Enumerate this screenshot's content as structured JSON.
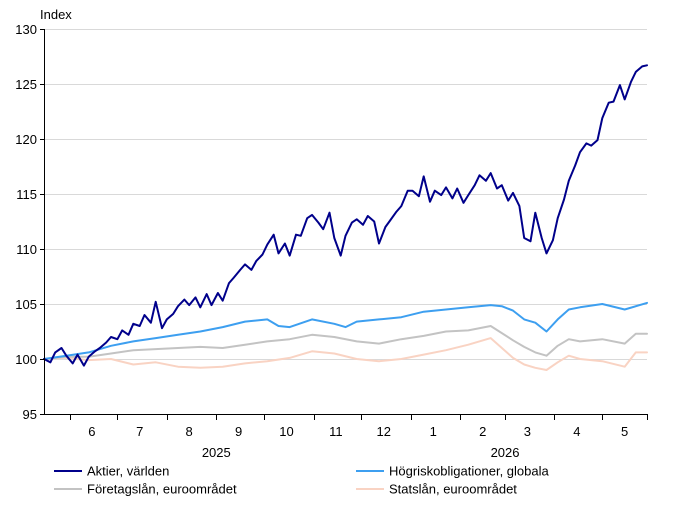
{
  "chart_data": {
    "type": "line",
    "title": "",
    "ylabel": "Index",
    "xlabel": "",
    "ylim": [
      95,
      130
    ],
    "yticks": [
      95,
      100,
      105,
      110,
      115,
      120,
      125,
      130
    ],
    "grid": true,
    "legend_position": "bottom",
    "x_start": "2025-05-16",
    "x_end": "2026-05-29",
    "month_ticks": [
      {
        "label": "6",
        "date": "2025-06-15"
      },
      {
        "label": "7",
        "date": "2025-07-15"
      },
      {
        "label": "8",
        "date": "2025-08-15"
      },
      {
        "label": "9",
        "date": "2025-09-15"
      },
      {
        "label": "10",
        "date": "2025-10-15"
      },
      {
        "label": "11",
        "date": "2025-11-15"
      },
      {
        "label": "12",
        "date": "2025-12-15"
      },
      {
        "label": "1",
        "date": "2026-01-15"
      },
      {
        "label": "2",
        "date": "2026-02-15"
      },
      {
        "label": "3",
        "date": "2026-03-15"
      },
      {
        "label": "4",
        "date": "2026-04-15"
      },
      {
        "label": "5",
        "date": "2026-05-15"
      }
    ],
    "years": [
      {
        "label": "2025",
        "date": "2025-09-01"
      },
      {
        "label": "2026",
        "date": "2026-03-01"
      }
    ],
    "series": [
      {
        "name": "Aktier, världen",
        "color": "#00008b",
        "points": [
          [
            "2025-05-16",
            100.0
          ],
          [
            "2025-05-20",
            99.7
          ],
          [
            "2025-05-23",
            100.6
          ],
          [
            "2025-05-27",
            101.0
          ],
          [
            "2025-05-30",
            100.3
          ],
          [
            "2025-06-03",
            99.6
          ],
          [
            "2025-06-06",
            100.4
          ],
          [
            "2025-06-10",
            99.4
          ],
          [
            "2025-06-13",
            100.2
          ],
          [
            "2025-06-17",
            100.7
          ],
          [
            "2025-06-20",
            101.0
          ],
          [
            "2025-06-24",
            101.5
          ],
          [
            "2025-06-27",
            102.0
          ],
          [
            "2025-07-01",
            101.8
          ],
          [
            "2025-07-04",
            102.6
          ],
          [
            "2025-07-08",
            102.2
          ],
          [
            "2025-07-11",
            103.2
          ],
          [
            "2025-07-15",
            103.0
          ],
          [
            "2025-07-18",
            104.0
          ],
          [
            "2025-07-22",
            103.3
          ],
          [
            "2025-07-25",
            105.2
          ],
          [
            "2025-07-29",
            102.8
          ],
          [
            "2025-08-01",
            103.6
          ],
          [
            "2025-08-05",
            104.1
          ],
          [
            "2025-08-08",
            104.8
          ],
          [
            "2025-08-12",
            105.4
          ],
          [
            "2025-08-15",
            104.9
          ],
          [
            "2025-08-19",
            105.6
          ],
          [
            "2025-08-22",
            104.7
          ],
          [
            "2025-08-26",
            105.9
          ],
          [
            "2025-08-29",
            104.9
          ],
          [
            "2025-09-02",
            106.0
          ],
          [
            "2025-09-05",
            105.3
          ],
          [
            "2025-09-09",
            106.9
          ],
          [
            "2025-09-12",
            107.4
          ],
          [
            "2025-09-16",
            108.1
          ],
          [
            "2025-09-19",
            108.6
          ],
          [
            "2025-09-23",
            108.1
          ],
          [
            "2025-09-26",
            108.9
          ],
          [
            "2025-09-30",
            109.5
          ],
          [
            "2025-10-03",
            110.4
          ],
          [
            "2025-10-07",
            111.3
          ],
          [
            "2025-10-10",
            109.6
          ],
          [
            "2025-10-14",
            110.5
          ],
          [
            "2025-10-17",
            109.4
          ],
          [
            "2025-10-21",
            111.3
          ],
          [
            "2025-10-24",
            111.2
          ],
          [
            "2025-10-28",
            112.8
          ],
          [
            "2025-10-31",
            113.1
          ],
          [
            "2025-11-04",
            112.4
          ],
          [
            "2025-11-07",
            111.8
          ],
          [
            "2025-11-11",
            113.3
          ],
          [
            "2025-11-14",
            111.0
          ],
          [
            "2025-11-18",
            109.4
          ],
          [
            "2025-11-21",
            111.2
          ],
          [
            "2025-11-25",
            112.4
          ],
          [
            "2025-11-28",
            112.7
          ],
          [
            "2025-12-02",
            112.2
          ],
          [
            "2025-12-05",
            113.0
          ],
          [
            "2025-12-09",
            112.5
          ],
          [
            "2025-12-12",
            110.5
          ],
          [
            "2025-12-16",
            112.0
          ],
          [
            "2025-12-19",
            112.6
          ],
          [
            "2025-12-23",
            113.4
          ],
          [
            "2025-12-26",
            113.9
          ],
          [
            "2025-12-30",
            115.3
          ],
          [
            "2026-01-02",
            115.3
          ],
          [
            "2026-01-06",
            114.8
          ],
          [
            "2026-01-09",
            116.6
          ],
          [
            "2026-01-13",
            114.3
          ],
          [
            "2026-01-16",
            115.3
          ],
          [
            "2026-01-20",
            114.9
          ],
          [
            "2026-01-23",
            115.6
          ],
          [
            "2026-01-27",
            114.6
          ],
          [
            "2026-01-30",
            115.5
          ],
          [
            "2026-02-03",
            114.2
          ],
          [
            "2026-02-06",
            114.9
          ],
          [
            "2026-02-10",
            115.8
          ],
          [
            "2026-02-13",
            116.7
          ],
          [
            "2026-02-17",
            116.2
          ],
          [
            "2026-02-20",
            116.9
          ],
          [
            "2026-02-24",
            115.5
          ],
          [
            "2026-02-27",
            115.8
          ],
          [
            "2026-03-03",
            114.4
          ],
          [
            "2026-03-06",
            115.1
          ],
          [
            "2026-03-10",
            113.9
          ],
          [
            "2026-03-13",
            111.0
          ],
          [
            "2026-03-17",
            110.7
          ],
          [
            "2026-03-20",
            113.3
          ],
          [
            "2026-03-24",
            111.0
          ],
          [
            "2026-03-27",
            109.6
          ],
          [
            "2026-03-31",
            110.8
          ],
          [
            "2026-04-03",
            112.8
          ],
          [
            "2026-04-07",
            114.5
          ],
          [
            "2026-04-10",
            116.2
          ],
          [
            "2026-04-14",
            117.6
          ],
          [
            "2026-04-17",
            118.8
          ],
          [
            "2026-04-21",
            119.6
          ],
          [
            "2026-04-24",
            119.4
          ],
          [
            "2026-04-28",
            119.9
          ],
          [
            "2026-05-01",
            121.9
          ],
          [
            "2026-05-05",
            123.3
          ],
          [
            "2026-05-08",
            123.4
          ],
          [
            "2026-05-12",
            124.9
          ],
          [
            "2026-05-15",
            123.6
          ],
          [
            "2026-05-19",
            125.2
          ],
          [
            "2026-05-22",
            126.1
          ],
          [
            "2026-05-26",
            126.6
          ],
          [
            "2026-05-29",
            126.7
          ]
        ]
      },
      {
        "name": "Högriskobligationer, globala",
        "color": "#3d9ff0",
        "points": [
          [
            "2025-05-16",
            100.0
          ],
          [
            "2025-05-30",
            100.3
          ],
          [
            "2025-06-13",
            100.6
          ],
          [
            "2025-06-27",
            101.2
          ],
          [
            "2025-07-11",
            101.6
          ],
          [
            "2025-07-25",
            101.9
          ],
          [
            "2025-08-08",
            102.2
          ],
          [
            "2025-08-22",
            102.5
          ],
          [
            "2025-09-05",
            102.9
          ],
          [
            "2025-09-19",
            103.4
          ],
          [
            "2025-10-03",
            103.6
          ],
          [
            "2025-10-10",
            103.0
          ],
          [
            "2025-10-17",
            102.9
          ],
          [
            "2025-10-31",
            103.6
          ],
          [
            "2025-11-14",
            103.2
          ],
          [
            "2025-11-21",
            102.9
          ],
          [
            "2025-11-28",
            103.4
          ],
          [
            "2025-12-12",
            103.6
          ],
          [
            "2025-12-26",
            103.8
          ],
          [
            "2026-01-09",
            104.3
          ],
          [
            "2026-01-23",
            104.5
          ],
          [
            "2026-02-06",
            104.7
          ],
          [
            "2026-02-20",
            104.9
          ],
          [
            "2026-02-27",
            104.8
          ],
          [
            "2026-03-06",
            104.4
          ],
          [
            "2026-03-13",
            103.6
          ],
          [
            "2026-03-20",
            103.3
          ],
          [
            "2026-03-27",
            102.5
          ],
          [
            "2026-04-03",
            103.6
          ],
          [
            "2026-04-10",
            104.5
          ],
          [
            "2026-04-17",
            104.7
          ],
          [
            "2026-05-01",
            105.0
          ],
          [
            "2026-05-15",
            104.5
          ],
          [
            "2026-05-29",
            105.1
          ]
        ]
      },
      {
        "name": "Företagslån, euroområdet",
        "color": "#c3c3c3",
        "points": [
          [
            "2025-05-16",
            100.0
          ],
          [
            "2025-05-30",
            100.2
          ],
          [
            "2025-06-13",
            100.2
          ],
          [
            "2025-06-27",
            100.5
          ],
          [
            "2025-07-11",
            100.8
          ],
          [
            "2025-07-25",
            100.9
          ],
          [
            "2025-08-08",
            101.0
          ],
          [
            "2025-08-22",
            101.1
          ],
          [
            "2025-09-05",
            101.0
          ],
          [
            "2025-09-19",
            101.3
          ],
          [
            "2025-10-03",
            101.6
          ],
          [
            "2025-10-17",
            101.8
          ],
          [
            "2025-10-31",
            102.2
          ],
          [
            "2025-11-14",
            102.0
          ],
          [
            "2025-11-28",
            101.6
          ],
          [
            "2025-12-12",
            101.4
          ],
          [
            "2025-12-26",
            101.8
          ],
          [
            "2026-01-09",
            102.1
          ],
          [
            "2026-01-23",
            102.5
          ],
          [
            "2026-02-06",
            102.6
          ],
          [
            "2026-02-20",
            103.0
          ],
          [
            "2026-03-06",
            101.7
          ],
          [
            "2026-03-13",
            101.1
          ],
          [
            "2026-03-20",
            100.6
          ],
          [
            "2026-03-27",
            100.3
          ],
          [
            "2026-04-03",
            101.2
          ],
          [
            "2026-04-10",
            101.8
          ],
          [
            "2026-04-17",
            101.6
          ],
          [
            "2026-05-01",
            101.8
          ],
          [
            "2026-05-15",
            101.4
          ],
          [
            "2026-05-22",
            102.3
          ],
          [
            "2026-05-29",
            102.3
          ]
        ]
      },
      {
        "name": "Statslån, euroområdet",
        "color": "#f9d3c3",
        "points": [
          [
            "2025-05-16",
            100.0
          ],
          [
            "2025-05-30",
            100.1
          ],
          [
            "2025-06-13",
            99.9
          ],
          [
            "2025-06-27",
            100.0
          ],
          [
            "2025-07-11",
            99.5
          ],
          [
            "2025-07-25",
            99.7
          ],
          [
            "2025-08-08",
            99.3
          ],
          [
            "2025-08-22",
            99.2
          ],
          [
            "2025-09-05",
            99.3
          ],
          [
            "2025-09-19",
            99.6
          ],
          [
            "2025-10-03",
            99.8
          ],
          [
            "2025-10-17",
            100.1
          ],
          [
            "2025-10-31",
            100.7
          ],
          [
            "2025-11-14",
            100.5
          ],
          [
            "2025-11-28",
            100.0
          ],
          [
            "2025-12-12",
            99.8
          ],
          [
            "2025-12-26",
            100.0
          ],
          [
            "2026-01-09",
            100.4
          ],
          [
            "2026-01-23",
            100.8
          ],
          [
            "2026-02-06",
            101.3
          ],
          [
            "2026-02-20",
            101.9
          ],
          [
            "2026-03-06",
            100.1
          ],
          [
            "2026-03-13",
            99.5
          ],
          [
            "2026-03-20",
            99.2
          ],
          [
            "2026-03-27",
            99.0
          ],
          [
            "2026-04-03",
            99.7
          ],
          [
            "2026-04-10",
            100.3
          ],
          [
            "2026-04-17",
            100.0
          ],
          [
            "2026-05-01",
            99.8
          ],
          [
            "2026-05-15",
            99.3
          ],
          [
            "2026-05-22",
            100.6
          ],
          [
            "2026-05-29",
            100.6
          ]
        ]
      }
    ]
  }
}
